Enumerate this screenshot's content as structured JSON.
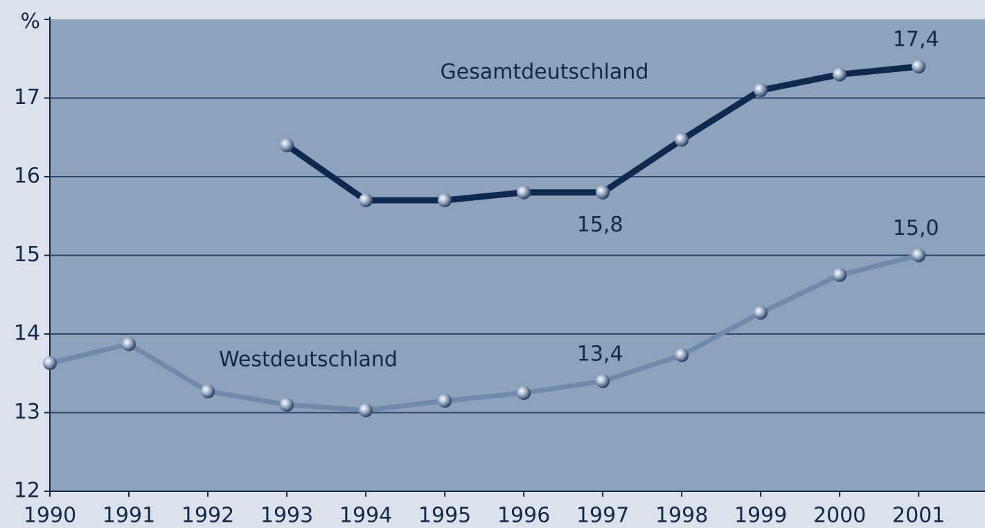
{
  "chart_data": {
    "type": "line",
    "x": [
      1990,
      1991,
      1992,
      1993,
      1994,
      1995,
      1996,
      1997,
      1998,
      1999,
      2000,
      2001
    ],
    "xlim": [
      1990,
      2001.84
    ],
    "xticks": [
      1990,
      1991,
      1992,
      1993,
      1994,
      1995,
      1996,
      1997,
      1998,
      1999,
      2000,
      2001
    ],
    "ylim": [
      12,
      18
    ],
    "yticks": [
      12,
      13,
      14,
      15,
      16,
      17,
      {
        "value": 18,
        "label": "%"
      }
    ],
    "grid": true,
    "series": [
      {
        "name": "Gesamtdeutschland",
        "color": "#0d2a4e",
        "values": [
          null,
          null,
          null,
          16.4,
          15.7,
          15.7,
          15.8,
          15.8,
          16.47,
          17.1,
          17.3,
          17.4
        ],
        "value_labels": [
          null,
          null,
          null,
          null,
          null,
          null,
          null,
          "15,8",
          null,
          null,
          null,
          "17,4"
        ]
      },
      {
        "name": "Westdeutschland",
        "color": "#6f8aaa",
        "values": [
          13.63,
          13.87,
          13.27,
          13.1,
          13.03,
          13.15,
          13.25,
          13.4,
          13.73,
          14.27,
          14.75,
          15.0
        ],
        "value_labels": [
          null,
          null,
          null,
          null,
          null,
          null,
          null,
          "13,4",
          null,
          null,
          null,
          "15,0"
        ]
      }
    ]
  }
}
